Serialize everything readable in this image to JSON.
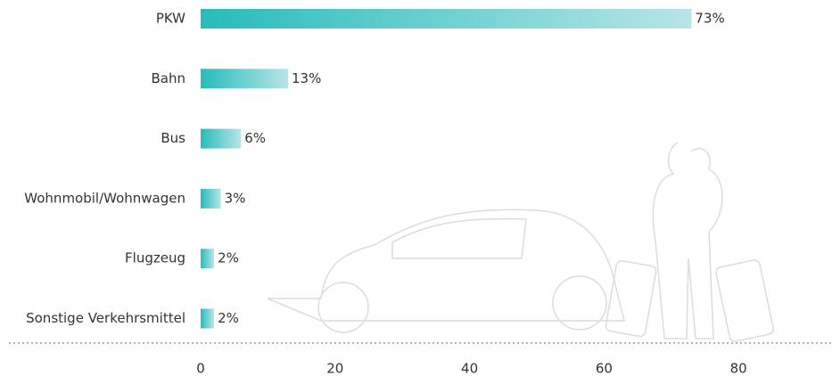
{
  "chart_data": {
    "type": "bar",
    "orientation": "horizontal",
    "categories": [
      "PKW",
      "Bahn",
      "Bus",
      "Wohnmobil/Wohnwagen",
      "Flugzeug",
      "Sonstige Verkehrsmittel"
    ],
    "values": [
      73,
      13,
      6,
      3,
      2,
      2
    ],
    "value_labels": [
      "73%",
      "13%",
      "6%",
      "3%",
      "2%",
      "2%"
    ],
    "gradient": [
      "#26bcb9",
      "#b8e5e8"
    ],
    "xlim": [
      0,
      94
    ],
    "xticks": [
      0,
      20,
      40,
      60,
      80
    ],
    "grid": false
  }
}
